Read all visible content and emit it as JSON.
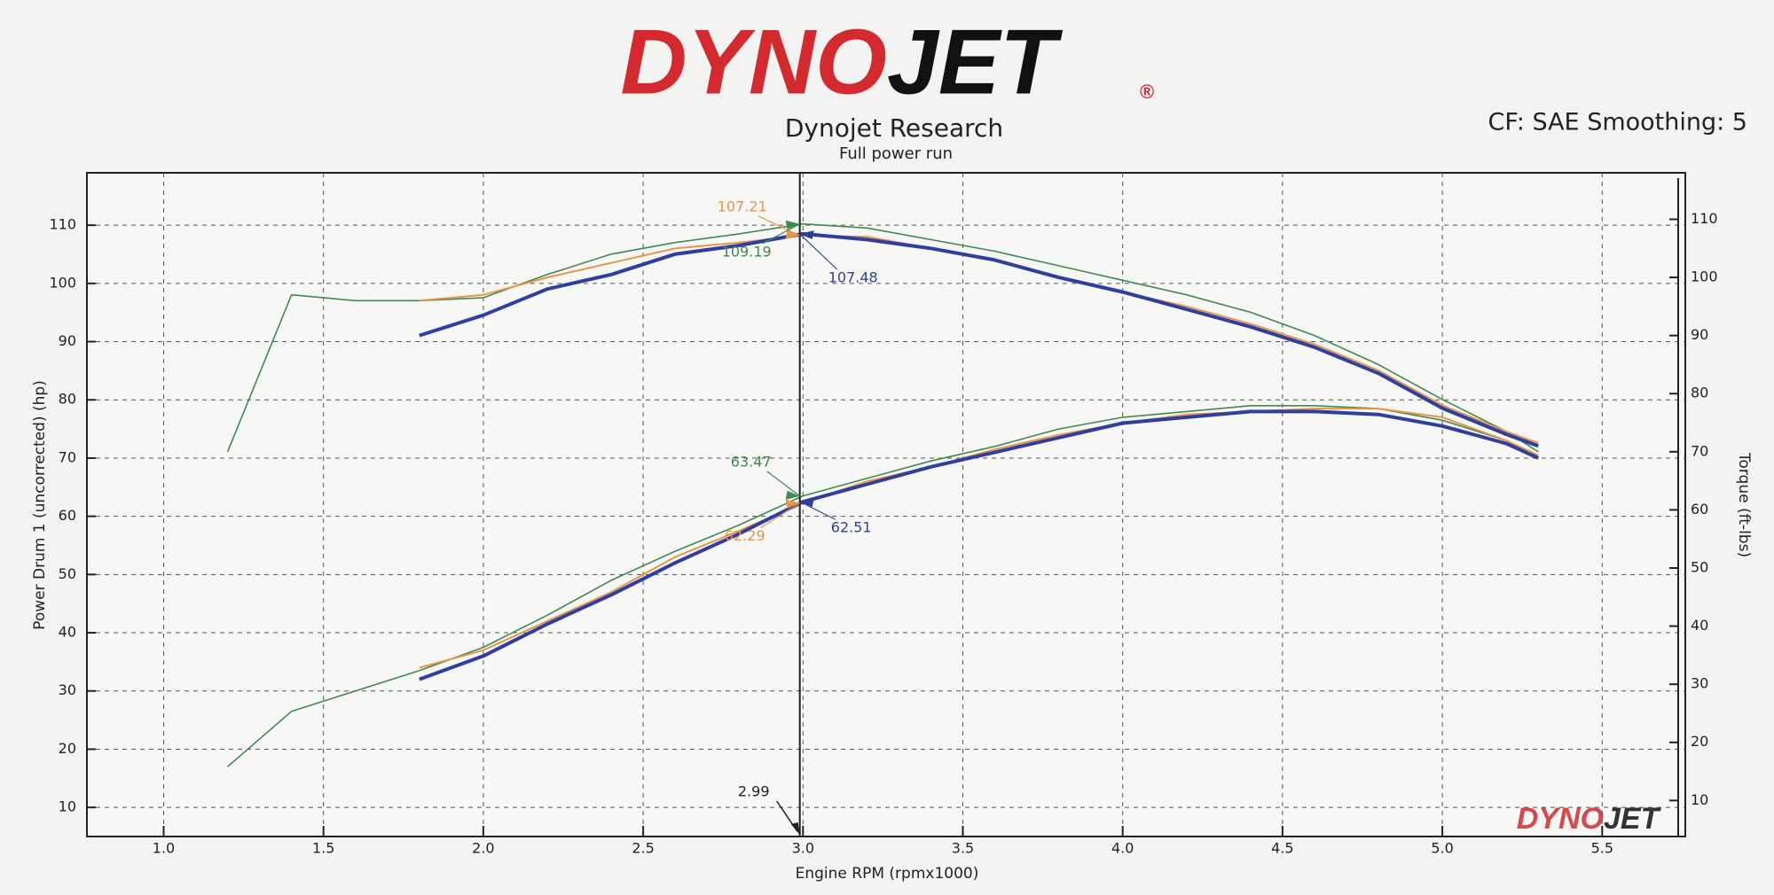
{
  "logo": {
    "left": "DYNO",
    "right": "JET",
    "mark": "®"
  },
  "chart_data": {
    "type": "line",
    "title": "Dynojet Research",
    "subtitle": "Full power run",
    "settings_text": "CF: SAE Smoothing: 5",
    "x_label": "Engine RPM (rpmx1000)",
    "y_label": "Power Drum 1 (uncorrected) (hp)",
    "y2_label": "Torque (ft-lbs)",
    "grid": true,
    "xlim": [
      0.76,
      5.76
    ],
    "xticks": [
      {
        "value": 1,
        "label": "1.0"
      },
      1.5,
      {
        "value": 2,
        "label": "2.0"
      },
      2.5,
      {
        "value": 3,
        "label": "3.0"
      },
      3.5,
      {
        "value": 4,
        "label": "4.0"
      },
      4.5,
      {
        "value": 5,
        "label": "5.0"
      },
      5.5
    ],
    "ylim": [
      5,
      119
    ],
    "yticks": [
      10,
      20,
      30,
      40,
      50,
      60,
      70,
      80,
      90,
      100,
      110
    ],
    "y2lim": [
      3.8,
      118
    ],
    "y2ticks": [
      10,
      20,
      30,
      40,
      50,
      60,
      70,
      80,
      90,
      100,
      110
    ],
    "x": [
      1.2,
      1.4,
      1.6,
      1.8,
      2.0,
      2.2,
      2.4,
      2.6,
      2.8,
      3.0,
      3.2,
      3.4,
      3.6,
      3.8,
      4.0,
      4.2,
      4.4,
      4.6,
      4.8,
      5.0,
      5.2,
      5.3
    ],
    "series": [
      {
        "color": "#3f8a4f",
        "width": 1.6,
        "axis": "y2",
        "values": [
          70,
          97,
          96,
          96,
          96.5,
          100.5,
          104,
          106,
          107.5,
          109.2,
          108.5,
          106.5,
          104.5,
          102,
          99.5,
          97,
          94,
          90,
          85,
          79,
          73.5,
          70
        ]
      },
      {
        "color": "#e8954a",
        "width": 2,
        "axis": "y2",
        "values": [
          null,
          null,
          null,
          96,
          97,
          100,
          102.5,
          105,
          106,
          107.2,
          107,
          105,
          103,
          100,
          97.5,
          95,
          92,
          88.5,
          84,
          78,
          73.5,
          71.5
        ]
      },
      {
        "color": "#2f3fa0",
        "width": 4,
        "axis": "y2",
        "values": [
          null,
          null,
          null,
          90,
          93.5,
          98,
          100.5,
          104,
          105.5,
          107.5,
          106.5,
          105,
          103,
          100,
          97.5,
          94.5,
          91.5,
          88,
          83.5,
          77.5,
          73,
          71
        ]
      },
      {
        "color": "#3f8a4f",
        "width": 1.6,
        "values": [
          17,
          26.5,
          30,
          33.5,
          37.5,
          43,
          49,
          54,
          58.5,
          63.5,
          66.5,
          69.5,
          72,
          75,
          77,
          78,
          79,
          79,
          78.5,
          76.5,
          73,
          70
        ]
      },
      {
        "color": "#e8954a",
        "width": 2,
        "values": [
          null,
          null,
          null,
          34,
          37,
          42,
          47,
          53,
          57.5,
          62.3,
          66,
          68.5,
          71.5,
          74,
          76,
          77.5,
          78,
          78.5,
          78.5,
          77,
          73,
          70.5
        ]
      },
      {
        "color": "#2f3fa0",
        "width": 4,
        "values": [
          null,
          null,
          null,
          32,
          36,
          41.5,
          46.5,
          52,
          57,
          62.5,
          65.5,
          68.5,
          71,
          73.5,
          76,
          77,
          78,
          78,
          77.5,
          75.5,
          72.5,
          70
        ]
      }
    ],
    "cursor": {
      "x": 2.99
    },
    "annotations": [
      {
        "value": 107.21,
        "color": "#e8954a",
        "axis": "y2"
      },
      {
        "value": 109.19,
        "color": "#3f8a4f",
        "axis": "y2"
      },
      {
        "value": 107.48,
        "color": "#2f3fa0",
        "axis": "y2"
      },
      {
        "value": 63.47,
        "color": "#3f8a4f"
      },
      {
        "value": 62.29,
        "color": "#e8954a"
      },
      {
        "value": 62.51,
        "color": "#2f3fa0"
      }
    ]
  }
}
